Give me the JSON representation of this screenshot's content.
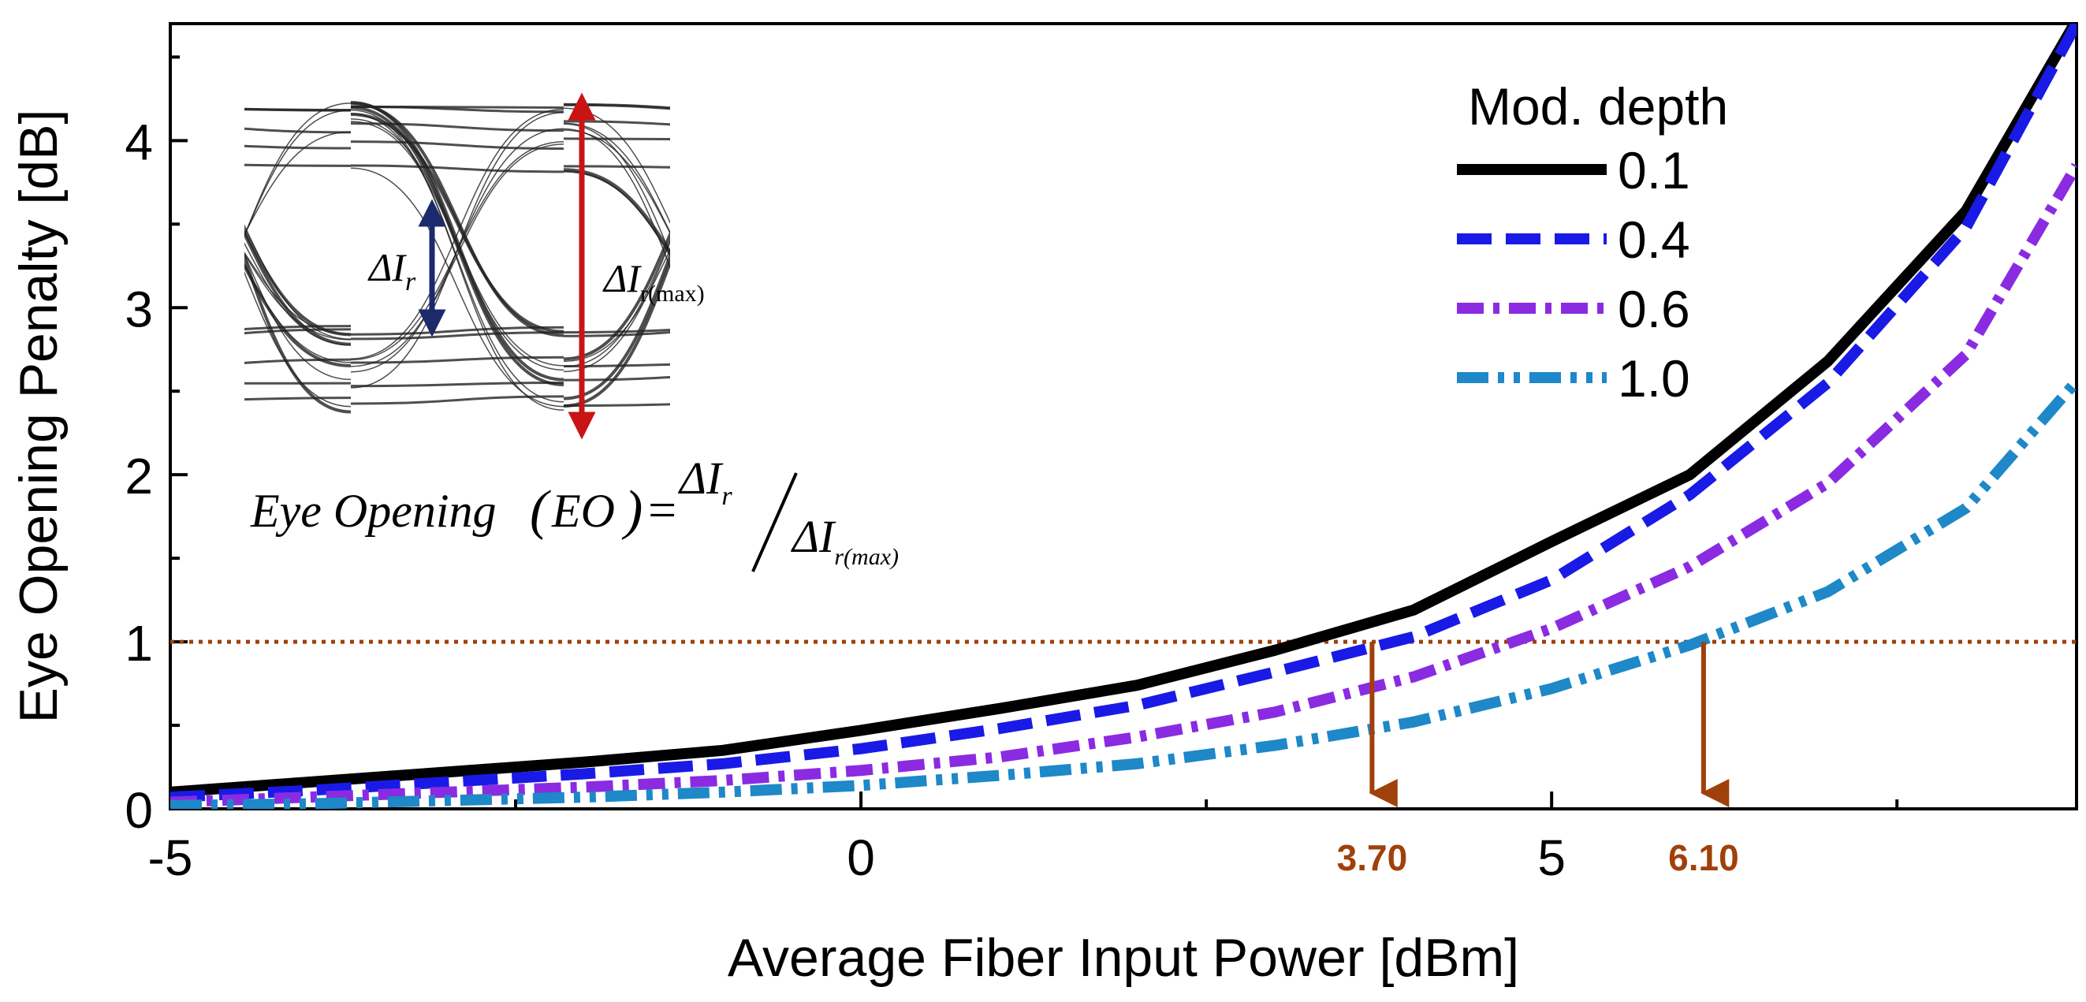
{
  "chart_data": {
    "type": "line",
    "title": "",
    "xlabel": "Average Fiber Input Power [dBm]",
    "ylabel": "Eye Opening Penalty [dB]",
    "xlim": [
      -5,
      8.8
    ],
    "ylim": [
      0,
      4.7
    ],
    "xticks": [
      -5,
      0,
      5
    ],
    "xtick_labels": [
      "-5",
      "0",
      "5"
    ],
    "x_minor_ticks": [
      -2.5,
      2.5,
      7.5
    ],
    "yticks": [
      0,
      1,
      2,
      3,
      4
    ],
    "ytick_labels": [
      "0",
      "1",
      "2",
      "3",
      "4"
    ],
    "legend_title": "Mod. depth",
    "legend_position": "top-right",
    "x": [
      -5,
      -4,
      -3,
      -2,
      -1,
      0,
      1,
      2,
      3,
      4,
      5,
      6,
      7,
      8,
      8.8
    ],
    "series": [
      {
        "name": "0.1",
        "color": "#000000",
        "dash": "solid",
        "values": [
          0.1,
          0.16,
          0.22,
          0.28,
          0.35,
          0.47,
          0.6,
          0.74,
          0.95,
          1.19,
          1.6,
          2.0,
          2.68,
          3.58,
          4.72
        ]
      },
      {
        "name": "0.4",
        "color": "#1a1ae6",
        "dash": "dash",
        "values": [
          0.07,
          0.11,
          0.16,
          0.21,
          0.27,
          0.36,
          0.48,
          0.62,
          0.82,
          1.03,
          1.37,
          1.88,
          2.55,
          3.48,
          4.7
        ]
      },
      {
        "name": "0.6",
        "color": "#8a2be2",
        "dash": "dashdot",
        "values": [
          0.04,
          0.07,
          0.1,
          0.13,
          0.17,
          0.23,
          0.31,
          0.43,
          0.58,
          0.79,
          1.08,
          1.45,
          1.95,
          2.72,
          3.85
        ]
      },
      {
        "name": "1.0",
        "color": "#1e88c8",
        "dash": "dashdotdot",
        "values": [
          0.02,
          0.03,
          0.05,
          0.07,
          0.1,
          0.14,
          0.2,
          0.27,
          0.38,
          0.52,
          0.72,
          0.98,
          1.3,
          1.8,
          2.56
        ]
      }
    ],
    "threshold": {
      "y": 1,
      "color": "#a0400a",
      "style": "dotted"
    },
    "annotations": [
      {
        "x": 3.7,
        "label": "3.70",
        "color": "#a0400a"
      },
      {
        "x": 6.1,
        "label": "6.10",
        "color": "#a0400a"
      }
    ]
  },
  "inset": {
    "label_delta_small": "ΔI",
    "label_delta_small_sub": "r",
    "label_delta_max": "ΔI",
    "label_delta_max_sub": "r(max)",
    "formula_lhs": "Eye Opening",
    "formula_abbrev": "EO",
    "formula_num": "ΔI",
    "formula_num_sub": "r",
    "formula_den": "ΔI",
    "formula_den_sub": "r(max)",
    "arrow_small_color": "#1a2a6c",
    "arrow_max_color": "#c81414"
  }
}
